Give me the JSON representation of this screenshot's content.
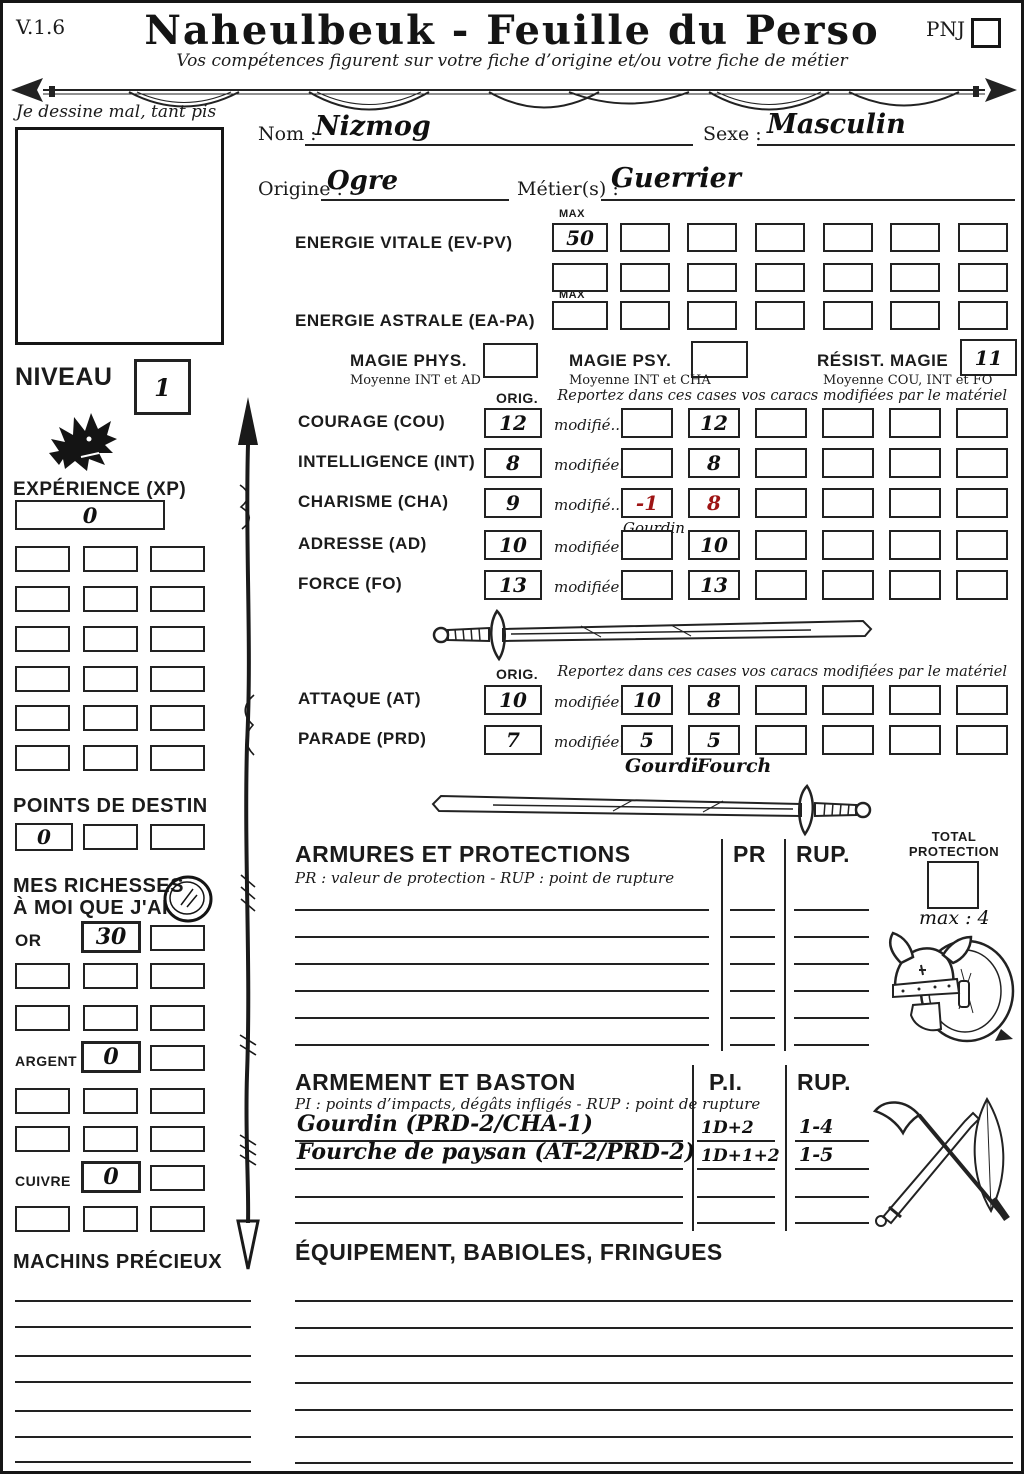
{
  "meta": {
    "version": "V.1.6",
    "pnj_label": "PNJ"
  },
  "header": {
    "title": "Naheulbeuk - Feuille du Perso",
    "subtitle": "Vos compétences figurent sur votre fiche d’origine et/ou votre fiche de métier"
  },
  "portrait": {
    "caption": "Je dessine mal, tant pis"
  },
  "identity": {
    "nom_label": "Nom :",
    "nom": "Nizmog",
    "sexe_label": "Sexe :",
    "sexe": "Masculin",
    "origine_label": "Origine :",
    "origine": "Ogre",
    "metier_label": "Métier(s) :",
    "metier": "Guerrier"
  },
  "energies": {
    "vitale_label": "ENERGIE VITALE (EV-PV)",
    "astrale_label": "ENERGIE ASTRALE (EA-PA)",
    "max_label": "MAX",
    "ev_max": "50"
  },
  "magie": {
    "phys_label": "MAGIE PHYS.",
    "phys_note": "Moyenne INT et AD",
    "psy_label": "MAGIE PSY.",
    "psy_note": "Moyenne INT et CHA",
    "resist_label": "RÉSIST. MAGIE",
    "resist_note": "Moyenne COU, INT et FO",
    "resist_value": "11"
  },
  "carac": {
    "orig_label": "ORIG.",
    "report_note": "Reportez dans ces cases vos caracs modifiées par le matériel",
    "rows": [
      {
        "label": "COURAGE (COU)",
        "orig": "12",
        "mod_label": "modifié...",
        "boxes": [
          "",
          "12",
          "",
          "",
          "",
          ""
        ],
        "red": []
      },
      {
        "label": "INTELLIGENCE (INT)",
        "orig": "8",
        "mod_label": "modifiée...",
        "boxes": [
          "",
          "8",
          "",
          "",
          "",
          ""
        ],
        "red": []
      },
      {
        "label": "CHARISME (CHA)",
        "orig": "9",
        "mod_label": "modifié...",
        "boxes": [
          "-1",
          "8",
          "",
          "",
          "",
          ""
        ],
        "red": [
          0,
          1
        ],
        "note": "Gourdin"
      },
      {
        "label": "ADRESSE (AD)",
        "orig": "10",
        "mod_label": "modifiée...",
        "boxes": [
          "",
          "10",
          "",
          "",
          "",
          ""
        ],
        "red": []
      },
      {
        "label": "FORCE (FO)",
        "orig": "13",
        "mod_label": "modifiée...",
        "boxes": [
          "",
          "13",
          "",
          "",
          "",
          ""
        ],
        "red": []
      }
    ]
  },
  "combat": {
    "orig_label": "ORIG.",
    "report_note": "Reportez dans ces cases vos caracs modifiées par le matériel",
    "rows": [
      {
        "label": "ATTAQUE (AT)",
        "orig": "10",
        "mod_label": "modifiée...",
        "boxes": [
          "10",
          "8",
          "",
          "",
          "",
          ""
        ],
        "red": []
      },
      {
        "label": "PARADE (PRD)",
        "orig": "7",
        "mod_label": "modifiée...",
        "boxes": [
          "5",
          "5",
          "",
          "",
          "",
          ""
        ],
        "red": []
      }
    ],
    "note1": "Gourdi",
    "note2": "Fourch"
  },
  "niveau": {
    "label": "NIVEAU",
    "value": "1"
  },
  "xp": {
    "label": "EXPÉRIENCE (XP)",
    "value": "0"
  },
  "destin": {
    "label": "POINTS DE DESTIN",
    "value": "0"
  },
  "richesses": {
    "label1": "MES RICHESSES",
    "label2": "À MOI QUE J'AI",
    "or_label": "OR",
    "or_value": "30",
    "argent_label": "ARGENT",
    "argent_value": "0",
    "cuivre_label": "CUIVRE",
    "cuivre_value": "0"
  },
  "machins": {
    "label": "MACHINS PRÉCIEUX"
  },
  "armures": {
    "title": "ARMURES ET PROTECTIONS",
    "subtitle": "PR : valeur de protection - RUP : point de rupture",
    "col_pr": "PR",
    "col_rup": "RUP.",
    "total_label1": "TOTAL",
    "total_label2": "PROTECTION",
    "total_max": "max : 4"
  },
  "armement": {
    "title": "ARMEMENT ET BASTON",
    "subtitle": "PI : points d’impacts, dégâts infligés - RUP : point de rupture",
    "col_pi": "P.I.",
    "col_rup": "RUP.",
    "rows": [
      {
        "name": "Gourdin (PRD-2/CHA-1)",
        "pi": "1D+2",
        "rup": "1-4"
      },
      {
        "name": "Fourche de paysan (AT-2/PRD-2)",
        "pi": "1D+1+2",
        "rup": "1-5"
      }
    ]
  },
  "equipement": {
    "title": "ÉQUIPEMENT, BABIOLES, FRINGUES"
  },
  "colors": {
    "ink": "#1b1b1b",
    "red": "#9e1414"
  }
}
